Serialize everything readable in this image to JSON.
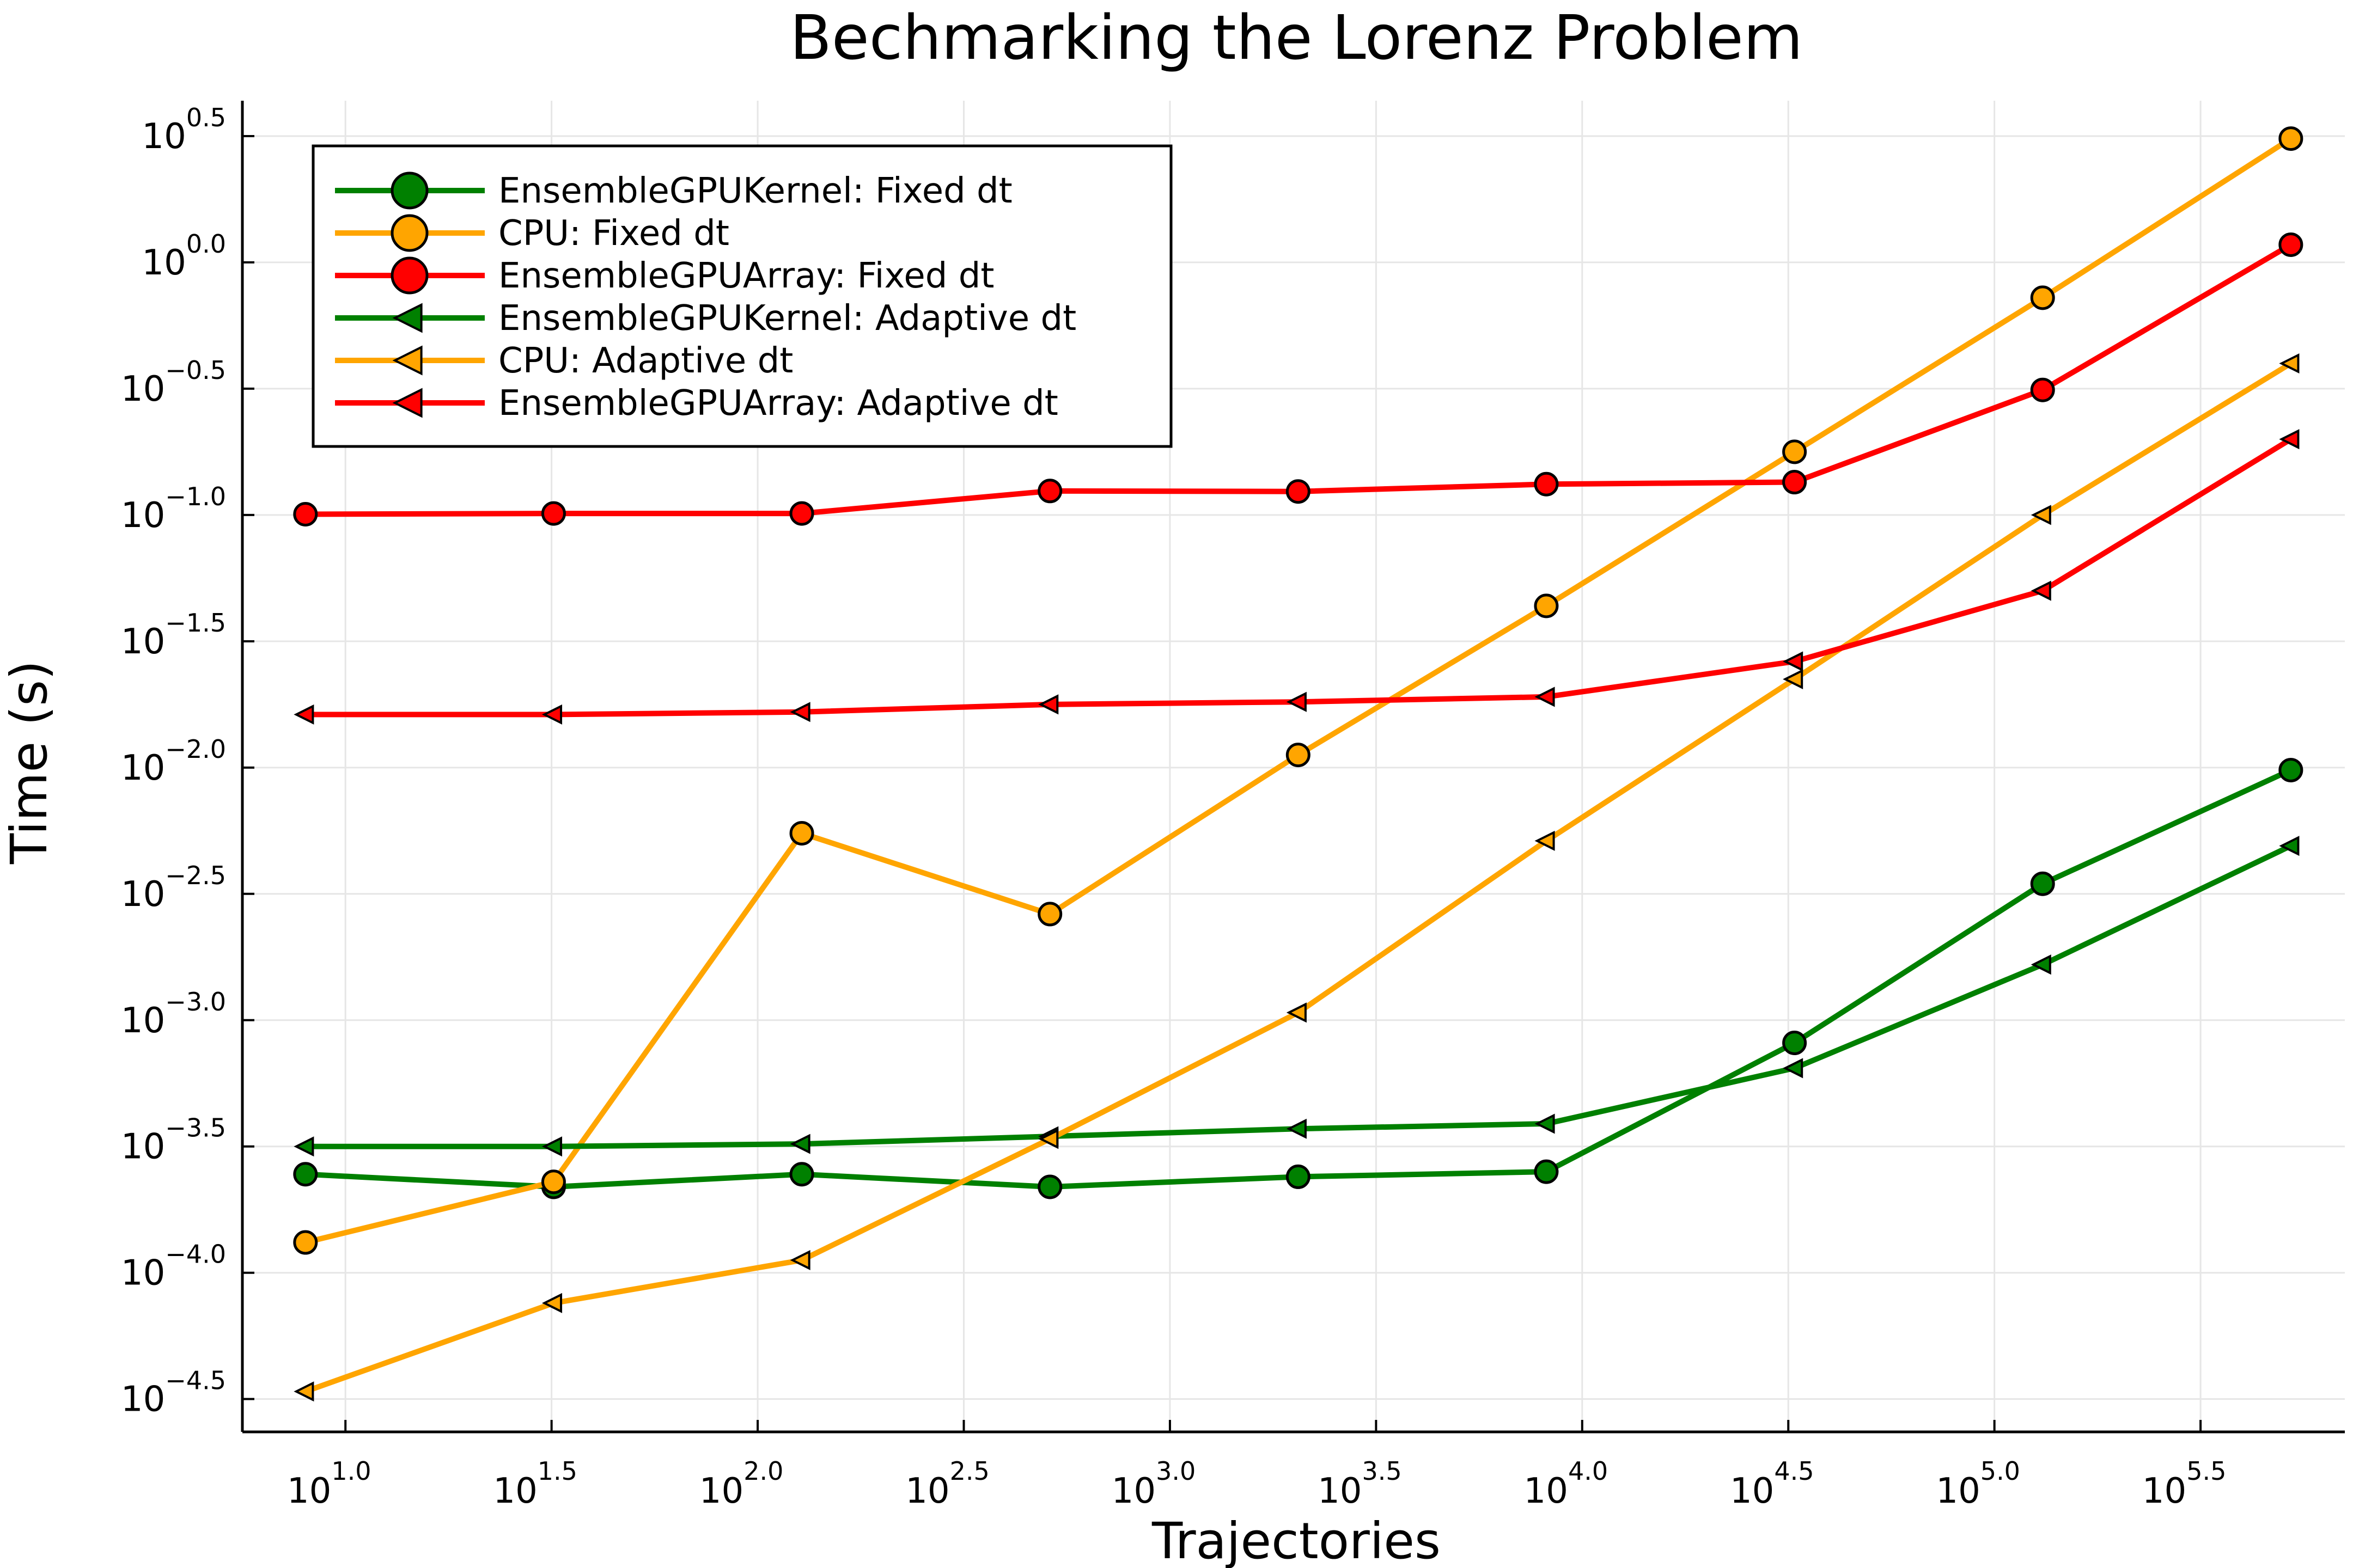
{
  "chart_data": {
    "type": "line",
    "title": "Bechmarking the Lorenz Problem",
    "xlabel": "Trajectories",
    "ylabel": "Time (s)",
    "x_scale": "log10",
    "y_scale": "log10",
    "xlim_log10": [
      0.75,
      5.85
    ],
    "ylim_log10": [
      -4.63,
      0.64
    ],
    "x_ticks": [
      {
        "base": "10",
        "exp": "1.0",
        "log10": 1.0
      },
      {
        "base": "10",
        "exp": "1.5",
        "log10": 1.5
      },
      {
        "base": "10",
        "exp": "2.0",
        "log10": 2.0
      },
      {
        "base": "10",
        "exp": "2.5",
        "log10": 2.5
      },
      {
        "base": "10",
        "exp": "3.0",
        "log10": 3.0
      },
      {
        "base": "10",
        "exp": "3.5",
        "log10": 3.5
      },
      {
        "base": "10",
        "exp": "4.0",
        "log10": 4.0
      },
      {
        "base": "10",
        "exp": "4.5",
        "log10": 4.5
      },
      {
        "base": "10",
        "exp": "5.0",
        "log10": 5.0
      },
      {
        "base": "10",
        "exp": "5.5",
        "log10": 5.5
      }
    ],
    "y_ticks": [
      {
        "base": "10",
        "exp": "−4.5",
        "log10": -4.5
      },
      {
        "base": "10",
        "exp": "−4.0",
        "log10": -4.0
      },
      {
        "base": "10",
        "exp": "−3.5",
        "log10": -3.5
      },
      {
        "base": "10",
        "exp": "−3.0",
        "log10": -3.0
      },
      {
        "base": "10",
        "exp": "−2.5",
        "log10": -2.5
      },
      {
        "base": "10",
        "exp": "−2.0",
        "log10": -2.0
      },
      {
        "base": "10",
        "exp": "−1.5",
        "log10": -1.5
      },
      {
        "base": "10",
        "exp": "−1.0",
        "log10": -1.0
      },
      {
        "base": "10",
        "exp": "−0.5",
        "log10": -0.5
      },
      {
        "base": "10",
        "exp": "0.0",
        "log10": 0.0
      },
      {
        "base": "10",
        "exp": "0.5",
        "log10": 0.5
      }
    ],
    "grid": true,
    "legend_position": "top-left",
    "x_log10": [
      0.903,
      1.505,
      2.107,
      2.709,
      3.311,
      3.913,
      4.515,
      5.117,
      5.719
    ],
    "series": [
      {
        "name": "EnsembleGPUKernel: Fixed dt",
        "color": "#008000",
        "marker": "circle",
        "y_log10": [
          -3.61,
          -3.66,
          -3.61,
          -3.66,
          -3.62,
          -3.6,
          -3.09,
          -2.46,
          -2.01
        ]
      },
      {
        "name": "CPU: Fixed dt",
        "color": "#ffa500",
        "marker": "circle",
        "y_log10": [
          -3.88,
          -3.64,
          -2.26,
          -2.58,
          -1.95,
          -1.36,
          -0.75,
          -0.14,
          0.49
        ]
      },
      {
        "name": "EnsembleGPUArray: Fixed dt",
        "color": "#ff0000",
        "marker": "circle",
        "y_log10": [
          -0.997,
          -0.994,
          -0.994,
          -0.905,
          -0.907,
          -0.878,
          -0.87,
          -0.505,
          0.07
        ]
      },
      {
        "name": "EnsembleGPUKernel: Adaptive dt",
        "color": "#008000",
        "marker": "triangle-left",
        "y_log10": [
          -3.5,
          -3.5,
          -3.49,
          -3.46,
          -3.43,
          -3.41,
          -3.19,
          -2.78,
          -2.31
        ]
      },
      {
        "name": "CPU: Adaptive dt",
        "color": "#ffa500",
        "marker": "triangle-left",
        "y_log10": [
          -4.47,
          -4.12,
          -3.95,
          -3.47,
          -2.97,
          -2.29,
          -1.65,
          -1.0,
          -0.4
        ]
      },
      {
        "name": "EnsembleGPUArray: Adaptive dt",
        "color": "#ff0000",
        "marker": "triangle-left",
        "y_log10": [
          -1.79,
          -1.79,
          -1.78,
          -1.75,
          -1.74,
          -1.72,
          -1.58,
          -1.3,
          -0.7
        ]
      }
    ]
  }
}
